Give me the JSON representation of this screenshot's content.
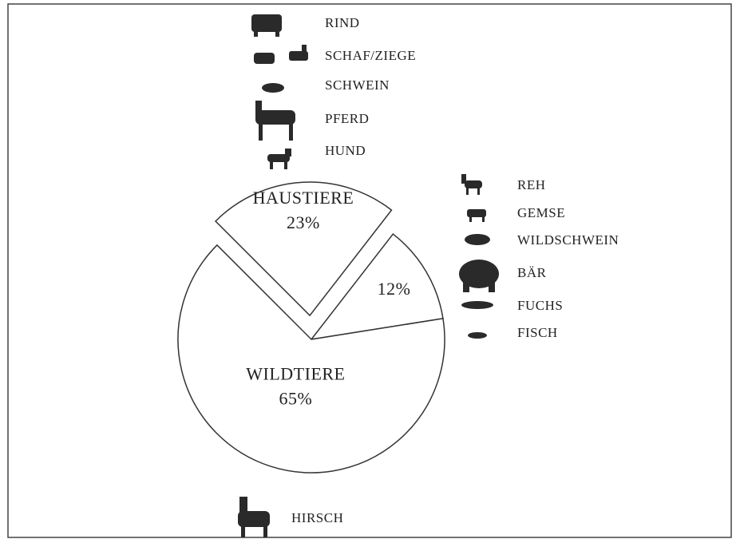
{
  "chart_data": {
    "type": "pie",
    "categories": [
      "HAUSTIERE",
      null,
      "WILDTIERE"
    ],
    "values": [
      23,
      12,
      65
    ],
    "value_labels": [
      "23%",
      "12%",
      "65%"
    ],
    "explode": [
      true,
      false,
      false
    ],
    "color": "#ffffff",
    "annotations": {
      "haustiere": [
        "RIND",
        "SCHAF/ZIEGE",
        "SCHWEIN",
        "PFERD",
        "HUND"
      ],
      "wildtiere": [
        "REH",
        "GEMSE",
        "WILDSCHWEIN",
        "BÄR",
        "FUCHS",
        "FISCH"
      ],
      "hirsch": "HIRSCH"
    }
  }
}
